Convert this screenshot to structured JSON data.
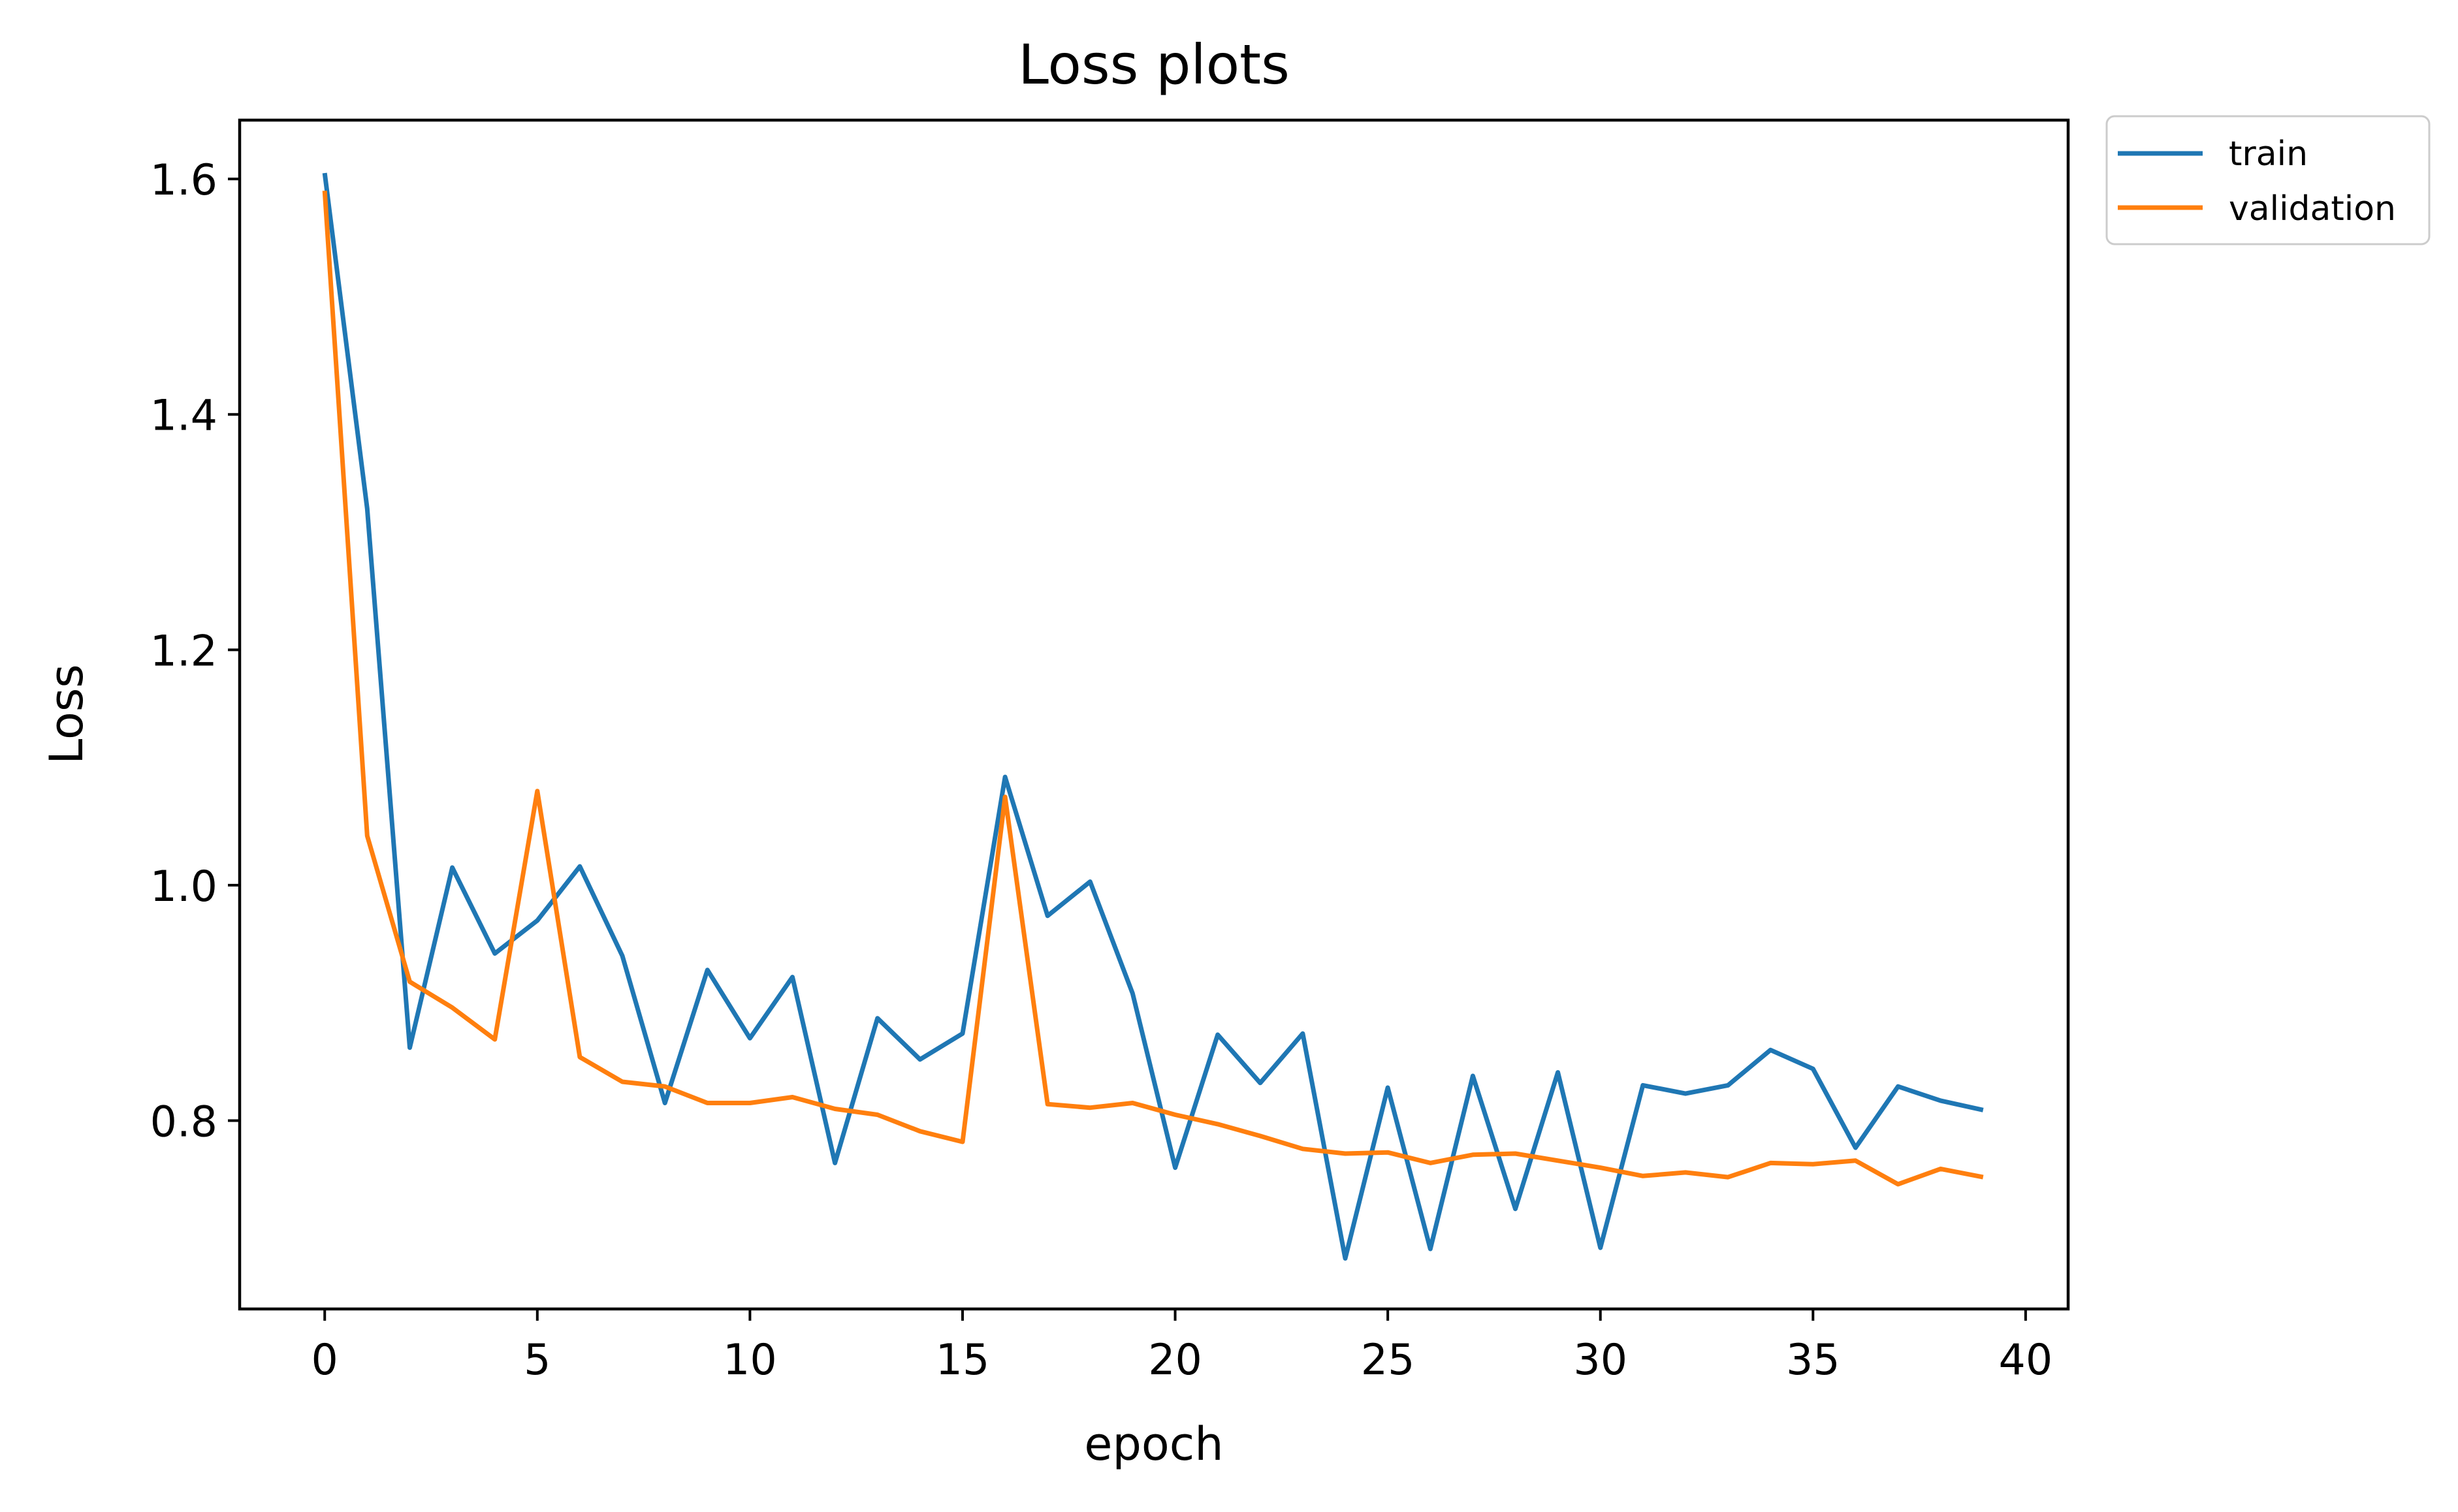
{
  "chart_data": {
    "type": "line",
    "title": "Loss plots",
    "xlabel": "epoch",
    "ylabel": "Loss",
    "xlim": [
      -2,
      41
    ],
    "ylim": [
      0.64,
      1.65
    ],
    "xticks": [
      0,
      5,
      10,
      15,
      20,
      25,
      30,
      35,
      40
    ],
    "yticks": [
      0.8,
      1.0,
      1.2,
      1.4,
      1.6
    ],
    "xtick_labels": [
      "0",
      "5",
      "10",
      "15",
      "20",
      "25",
      "30",
      "35",
      "40"
    ],
    "ytick_labels": [
      "0.8",
      "1.0",
      "1.2",
      "1.4",
      "1.6"
    ],
    "grid": false,
    "legend_position": "outside upper-right",
    "x": [
      0,
      1,
      2,
      3,
      4,
      5,
      6,
      7,
      8,
      9,
      10,
      11,
      12,
      13,
      14,
      15,
      16,
      17,
      18,
      19,
      20,
      21,
      22,
      23,
      24,
      25,
      26,
      27,
      28,
      29,
      30,
      31,
      32,
      33,
      34,
      35,
      36,
      37,
      38,
      39
    ],
    "series": [
      {
        "name": "train",
        "color": "#1f77b4",
        "values": [
          1.605,
          1.32,
          0.862,
          1.015,
          0.942,
          0.97,
          1.016,
          0.94,
          0.815,
          0.928,
          0.87,
          0.922,
          0.764,
          0.887,
          0.852,
          0.874,
          1.092,
          0.974,
          1.003,
          0.908,
          0.76,
          0.873,
          0.832,
          0.874,
          0.683,
          0.828,
          0.691,
          0.838,
          0.725,
          0.841,
          0.692,
          0.83,
          0.823,
          0.83,
          0.86,
          0.844,
          0.777,
          0.829,
          0.817,
          0.809
        ]
      },
      {
        "name": "validation",
        "color": "#ff7f0e",
        "values": [
          1.59,
          1.042,
          0.918,
          0.896,
          0.869,
          1.08,
          0.854,
          0.833,
          0.829,
          0.815,
          0.815,
          0.82,
          0.81,
          0.805,
          0.791,
          0.782,
          1.075,
          0.814,
          0.811,
          0.815,
          0.805,
          0.797,
          0.787,
          0.776,
          0.772,
          0.773,
          0.764,
          0.771,
          0.772,
          0.766,
          0.76,
          0.753,
          0.756,
          0.752,
          0.764,
          0.763,
          0.766,
          0.746,
          0.759,
          0.752
        ]
      }
    ]
  }
}
